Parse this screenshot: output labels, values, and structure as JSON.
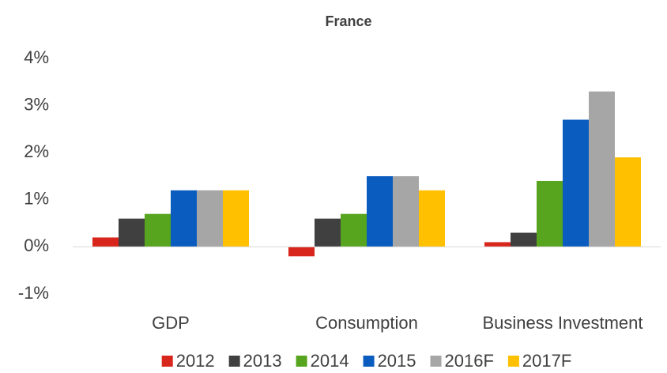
{
  "chart_data": {
    "type": "bar",
    "title": "France",
    "categories": [
      "GDP",
      "Consumption",
      "Business Investment"
    ],
    "series": [
      {
        "name": "2012",
        "color": "#d9261c",
        "values": [
          0.2,
          -0.2,
          0.1
        ]
      },
      {
        "name": "2013",
        "color": "#404040",
        "values": [
          0.6,
          0.6,
          0.3
        ]
      },
      {
        "name": "2014",
        "color": "#57a51e",
        "values": [
          0.7,
          0.7,
          1.4
        ]
      },
      {
        "name": "2015",
        "color": "#0a5cbf",
        "values": [
          1.2,
          1.5,
          2.7
        ]
      },
      {
        "name": "2016F",
        "color": "#a6a6a6",
        "values": [
          1.2,
          1.5,
          3.3
        ]
      },
      {
        "name": "2017F",
        "color": "#ffc000",
        "values": [
          1.2,
          1.2,
          1.9
        ]
      }
    ],
    "ylim": [
      -1,
      4
    ],
    "yticks": [
      {
        "value": -1,
        "label": "-1%"
      },
      {
        "value": 0,
        "label": "0%"
      },
      {
        "value": 1,
        "label": "1%"
      },
      {
        "value": 2,
        "label": "2%"
      },
      {
        "value": 3,
        "label": "3%"
      },
      {
        "value": 4,
        "label": "4%"
      }
    ],
    "grid": false,
    "legend": "bottom"
  }
}
